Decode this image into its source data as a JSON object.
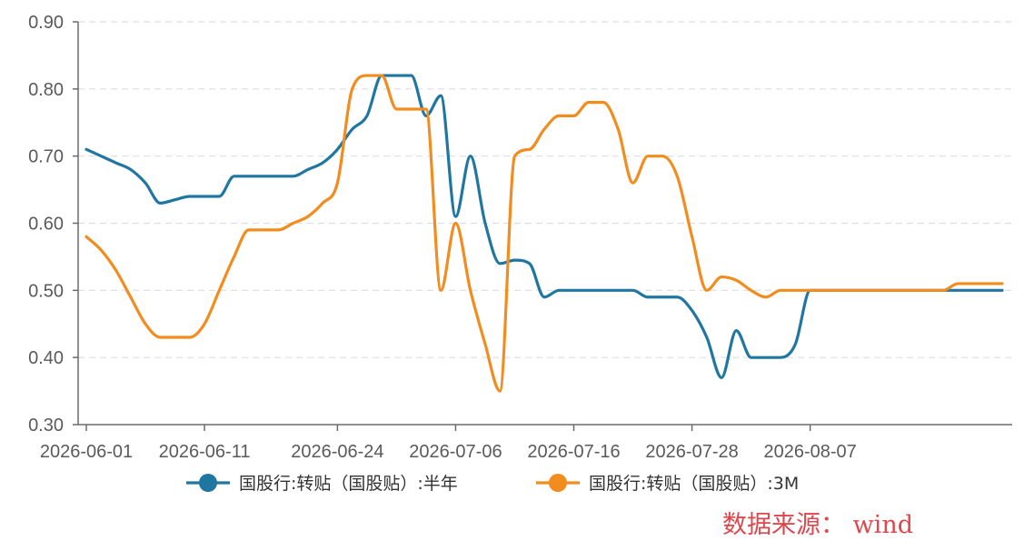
{
  "chart_data": {
    "type": "line",
    "x": [
      "2026-06-01",
      "2026-06-02",
      "2026-06-03",
      "2026-06-04",
      "2026-06-05",
      "2026-06-08",
      "2026-06-09",
      "2026-06-10",
      "2026-06-11",
      "2026-06-12",
      "2026-06-15",
      "2026-06-16",
      "2026-06-17",
      "2026-06-18",
      "2026-06-19",
      "2026-06-22",
      "2026-06-23",
      "2026-06-24",
      "2026-06-25",
      "2026-06-26",
      "2026-06-29",
      "2026-06-30",
      "2026-07-01",
      "2026-07-02",
      "2026-07-03",
      "2026-07-06",
      "2026-07-07",
      "2026-07-08",
      "2026-07-09",
      "2026-07-10",
      "2026-07-13",
      "2026-07-14",
      "2026-07-15",
      "2026-07-16",
      "2026-07-17",
      "2026-07-20",
      "2026-07-21",
      "2026-07-22",
      "2026-07-23",
      "2026-07-24",
      "2026-07-27",
      "2026-07-28",
      "2026-07-29",
      "2026-07-30",
      "2026-07-31",
      "2026-08-03",
      "2026-08-04",
      "2026-08-05",
      "2026-08-06",
      "2026-08-07",
      "2026-08-10",
      "2026-08-11",
      "2026-08-12",
      "2026-08-13",
      "2026-08-14",
      "2026-08-17",
      "2026-08-18",
      "2026-08-19",
      "2026-08-20",
      "2026-08-21",
      "2026-08-24",
      "2026-08-25",
      "2026-08-26"
    ],
    "x_ticks": [
      "2026-06-01",
      "2026-06-11",
      "2026-06-24",
      "2026-07-06",
      "2026-07-16",
      "2026-07-28",
      "2026-08-07"
    ],
    "x_tick_index": [
      0,
      8,
      17,
      25,
      33,
      41,
      49
    ],
    "ylim": [
      0.3,
      0.9
    ],
    "y_ticks": [
      "0.30",
      "0.40",
      "0.50",
      "0.60",
      "0.70",
      "0.80",
      "0.90"
    ],
    "grid": true,
    "legend_position": "bottom",
    "series": [
      {
        "name": "国股行:转贴（国股贴）:半年",
        "color": "#1f77a1",
        "values": [
          0.71,
          0.7,
          0.69,
          0.68,
          0.66,
          0.63,
          0.635,
          0.64,
          0.64,
          0.64,
          0.67,
          0.67,
          0.67,
          0.67,
          0.67,
          0.68,
          0.69,
          0.71,
          0.74,
          0.76,
          0.82,
          0.82,
          0.82,
          0.76,
          0.79,
          0.61,
          0.7,
          0.6,
          0.54,
          0.545,
          0.54,
          0.49,
          0.5,
          0.5,
          0.5,
          0.5,
          0.5,
          0.5,
          0.49,
          0.49,
          0.49,
          0.47,
          0.43,
          0.37,
          0.44,
          0.4,
          0.4,
          0.4,
          0.42,
          0.5,
          0.5,
          0.5,
          0.5,
          0.5,
          0.5,
          0.5,
          0.5,
          0.5,
          0.5,
          0.5,
          0.5,
          0.5,
          0.5
        ]
      },
      {
        "name": "国股行:转贴（国股贴）:3M",
        "color": "#f28c1e",
        "values": [
          0.58,
          0.56,
          0.53,
          0.49,
          0.45,
          0.43,
          0.43,
          0.43,
          0.45,
          0.5,
          0.55,
          0.59,
          0.59,
          0.59,
          0.6,
          0.61,
          0.63,
          0.66,
          0.8,
          0.82,
          0.82,
          0.77,
          0.77,
          0.77,
          0.5,
          0.6,
          0.5,
          0.42,
          0.35,
          0.7,
          0.71,
          0.74,
          0.76,
          0.76,
          0.78,
          0.78,
          0.74,
          0.66,
          0.7,
          0.7,
          0.67,
          0.58,
          0.5,
          0.52,
          0.515,
          0.5,
          0.49,
          0.5,
          0.5,
          0.5,
          0.5,
          0.5,
          0.5,
          0.5,
          0.5,
          0.5,
          0.5,
          0.5,
          0.5,
          0.51,
          0.51,
          0.51,
          0.51
        ]
      }
    ],
    "source_note": "数据来源： wind"
  }
}
